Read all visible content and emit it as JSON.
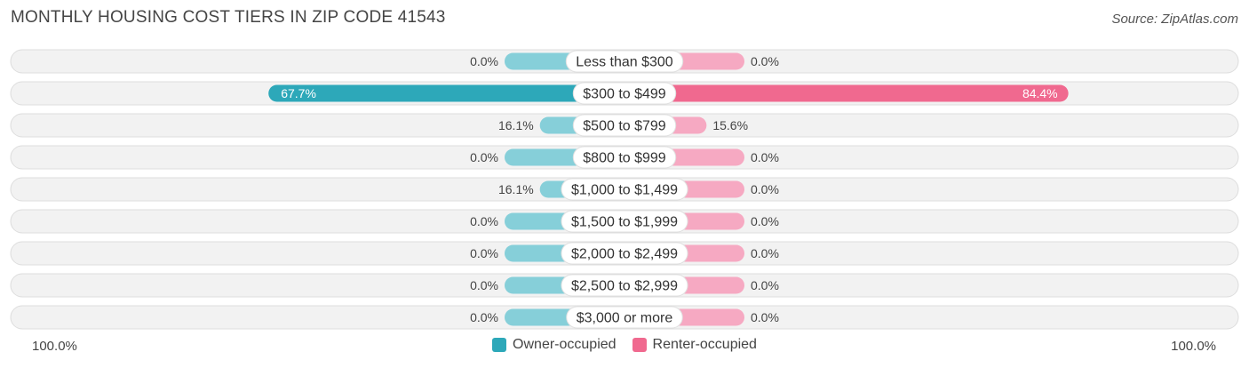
{
  "title": "MONTHLY HOUSING COST TIERS IN ZIP CODE 41543",
  "source": "Source: ZipAtlas.com",
  "colors": {
    "owner": "#2da8b9",
    "owner_light": "#86cfd9",
    "renter": "#f0698f",
    "renter_light": "#f6a9c2",
    "row_bg": "#efefef",
    "row_border": "#dddddd"
  },
  "axis": {
    "left_label": "100.0%",
    "right_label": "100.0%"
  },
  "legend": {
    "owner_label": "Owner-occupied",
    "renter_label": "Renter-occupied"
  },
  "chart_data": {
    "type": "bar",
    "orientation": "diverging-horizontal",
    "title": "MONTHLY HOUSING COST TIERS IN ZIP CODE 41543",
    "categories": [
      "Less than $300",
      "$300 to $499",
      "$500 to $799",
      "$800 to $999",
      "$1,000 to $1,499",
      "$1,500 to $1,999",
      "$2,000 to $2,499",
      "$2,500 to $2,999",
      "$3,000 or more"
    ],
    "series": [
      {
        "name": "Owner-occupied",
        "values": [
          0.0,
          67.7,
          16.1,
          0.0,
          16.1,
          0.0,
          0.0,
          0.0,
          0.0
        ],
        "labels": [
          "0.0%",
          "67.7%",
          "16.1%",
          "0.0%",
          "16.1%",
          "0.0%",
          "0.0%",
          "0.0%",
          "0.0%"
        ]
      },
      {
        "name": "Renter-occupied",
        "values": [
          0.0,
          84.4,
          15.6,
          0.0,
          0.0,
          0.0,
          0.0,
          0.0,
          0.0
        ],
        "labels": [
          "0.0%",
          "84.4%",
          "15.6%",
          "0.0%",
          "0.0%",
          "0.0%",
          "0.0%",
          "0.0%",
          "0.0%"
        ]
      }
    ],
    "xlim": [
      -100,
      100
    ],
    "legend_position": "bottom-center"
  }
}
